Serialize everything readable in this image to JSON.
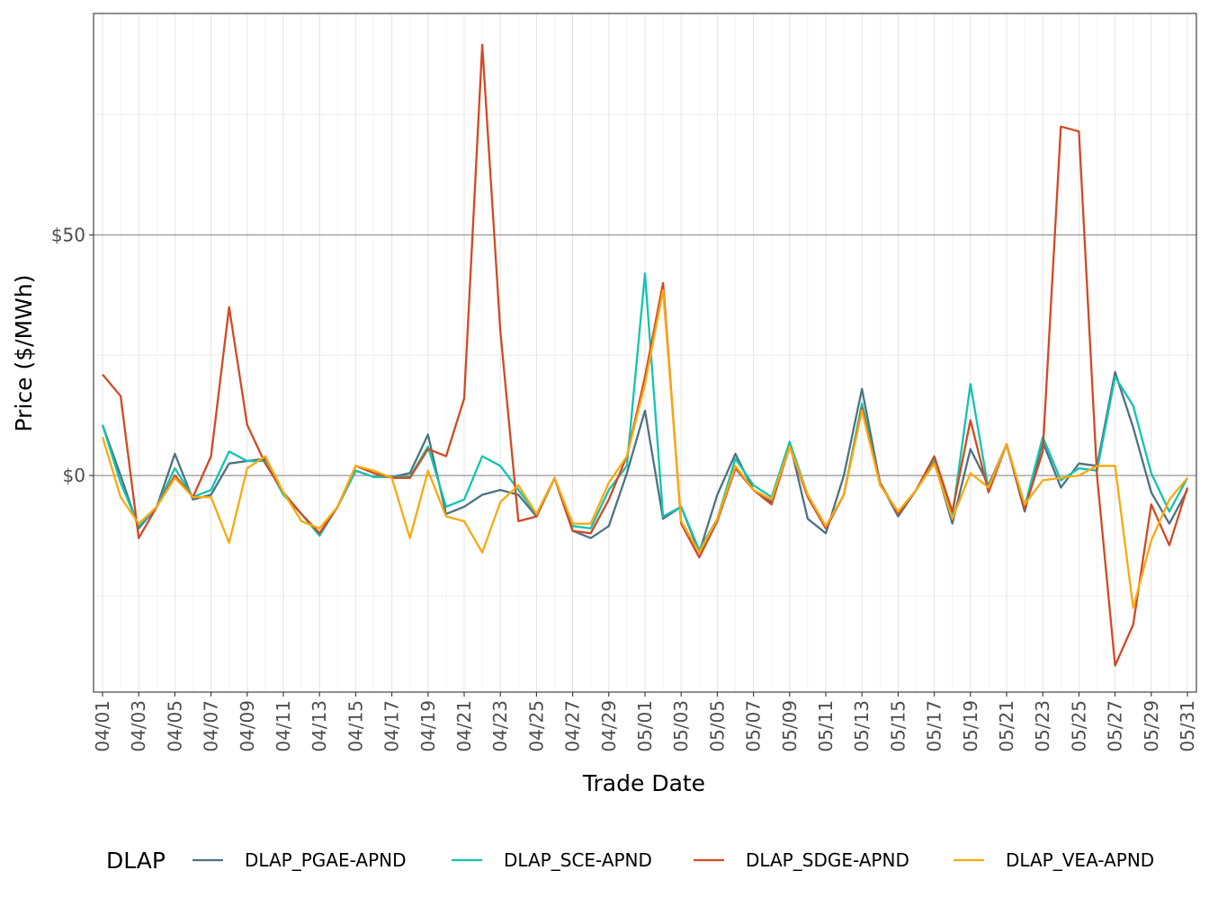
{
  "chart_data": {
    "type": "line",
    "title": "",
    "xlabel": "Trade Date",
    "ylabel": "Price ($/MWh)",
    "ylim": [
      -45,
      96
    ],
    "grid": true,
    "legend_position": "bottom",
    "legend_title": "DLAP",
    "y_ticks": [
      {
        "value": 0,
        "label": "$0"
      },
      {
        "value": 50,
        "label": "$50"
      }
    ],
    "x": [
      "04/01",
      "04/02",
      "04/03",
      "04/04",
      "04/05",
      "04/06",
      "04/07",
      "04/08",
      "04/09",
      "04/10",
      "04/11",
      "04/12",
      "04/13",
      "04/14",
      "04/15",
      "04/16",
      "04/17",
      "04/18",
      "04/19",
      "04/20",
      "04/21",
      "04/22",
      "04/23",
      "04/24",
      "04/25",
      "04/26",
      "04/27",
      "04/28",
      "04/29",
      "04/30",
      "05/01",
      "05/02",
      "05/03",
      "05/04",
      "05/05",
      "05/06",
      "05/07",
      "05/08",
      "05/09",
      "05/10",
      "05/11",
      "05/12",
      "05/13",
      "05/14",
      "05/15",
      "05/16",
      "05/17",
      "05/18",
      "05/19",
      "05/20",
      "05/21",
      "05/22",
      "05/23",
      "05/24",
      "05/25",
      "05/26",
      "05/27",
      "05/28",
      "05/29",
      "05/30",
      "05/31"
    ],
    "x_tick_labels": [
      "04/01",
      "04/03",
      "04/05",
      "04/07",
      "04/09",
      "04/11",
      "04/13",
      "04/15",
      "04/17",
      "04/19",
      "04/21",
      "04/23",
      "04/25",
      "04/27",
      "04/29",
      "05/01",
      "05/03",
      "05/05",
      "05/07",
      "05/09",
      "05/11",
      "05/13",
      "05/15",
      "05/17",
      "05/19",
      "05/21",
      "05/23",
      "05/25",
      "05/27",
      "05/29",
      "05/31"
    ],
    "series": [
      {
        "name": "DLAP_PGAE-APND",
        "color": "#4e7282",
        "values": [
          10.5,
          0,
          -11,
          -6.5,
          4.5,
          -5,
          -4,
          2.5,
          3,
          3.5,
          -4,
          -8,
          -12,
          -6.5,
          1,
          -0.3,
          -0.3,
          0.5,
          8.5,
          -8,
          -6.5,
          -4,
          -3,
          -4,
          -8.5,
          -0.5,
          -11.5,
          -13,
          -10.5,
          0.5,
          13.5,
          -9,
          -6.5,
          -16,
          -4,
          4.5,
          -3,
          -5.5,
          7,
          -9,
          -12,
          0,
          18,
          -1.5,
          -8.5,
          -3,
          3,
          -10,
          5.5,
          -2,
          6.5,
          -7.5,
          7,
          -2.5,
          2.5,
          2,
          21.5,
          10,
          -3.5,
          -10,
          -3
        ]
      },
      {
        "name": "DLAP_SCE-APND",
        "color": "#13c3b0",
        "values": [
          10.5,
          -1.5,
          -10.5,
          -6.5,
          1.5,
          -4.5,
          -3,
          5,
          3,
          3,
          -4,
          -8,
          -12.5,
          -6.5,
          1,
          -0.3,
          -0.3,
          -0.3,
          6,
          -6.5,
          -5,
          4,
          2,
          -3,
          -8,
          -0.5,
          -10.5,
          -11,
          -3,
          2,
          42,
          -8.5,
          -6.5,
          -15.5,
          -9,
          3.5,
          -2,
          -4.5,
          7,
          -4,
          -11,
          -4,
          15,
          -1.5,
          -8,
          -3,
          3.5,
          -8.5,
          19,
          -3,
          6.5,
          -6.5,
          8,
          -1,
          1.5,
          1,
          20.5,
          14.5,
          0.5,
          -7.5,
          -0.5
        ]
      },
      {
        "name": "DLAP_SDGE-APND",
        "color": "#d04a22",
        "values": [
          21,
          16.5,
          -13,
          -6.5,
          0,
          -4.5,
          4,
          35,
          10.5,
          2.5,
          -3.5,
          -8,
          -12,
          -6.5,
          2,
          0.5,
          -0.5,
          -0.5,
          5.5,
          4,
          16,
          89.5,
          30,
          -9.5,
          -8.5,
          -0.5,
          -11.5,
          -12,
          -5,
          4,
          20.5,
          40,
          -10,
          -17,
          -9.5,
          1.5,
          -3,
          -6,
          6,
          -4.5,
          -11,
          -4,
          14,
          -1.5,
          -8,
          -3,
          4,
          -7.5,
          11.5,
          -3.5,
          6.5,
          -7,
          5,
          72.5,
          71.5,
          0,
          -39.5,
          -31,
          -6,
          -14.5,
          -2.5
        ]
      },
      {
        "name": "DLAP_VEA-APND",
        "color": "#f9a90e",
        "values": [
          8,
          -4.5,
          -10,
          -6.5,
          -0.5,
          -4.5,
          -4.5,
          -14,
          1.5,
          4,
          -3.5,
          -9.5,
          -11,
          -6.5,
          2,
          1,
          -0.5,
          -13,
          1,
          -8.5,
          -9.5,
          -16,
          -5.5,
          -2,
          -8,
          -0.5,
          -10,
          -10,
          -1.5,
          4,
          19,
          38.5,
          -9.5,
          -16,
          -9,
          2,
          -3,
          -5,
          6,
          -4,
          -10.5,
          -4,
          13.5,
          -2,
          -7.5,
          -3,
          2.5,
          -9,
          0.5,
          -2.5,
          6.5,
          -6,
          -1,
          -0.5,
          0,
          2,
          2,
          -27.5,
          -13.5,
          -5,
          -0.5
        ]
      }
    ]
  }
}
